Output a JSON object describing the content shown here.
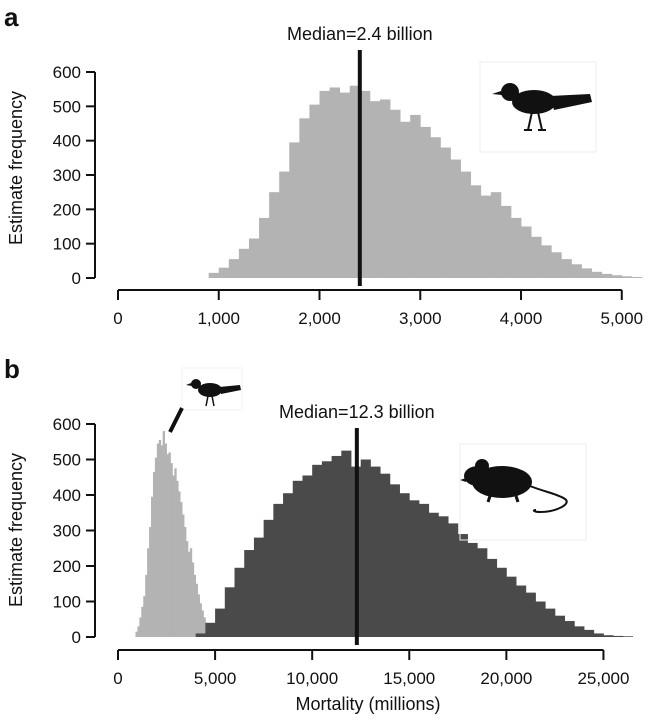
{
  "colors": {
    "bird_bars": "#b3b3b3",
    "mammal_bars": "#4a4a4a",
    "median_line": "#111111",
    "axis": "#111111"
  },
  "chart_data": [
    {
      "panel_label": "a",
      "type": "bar",
      "ylabel": "Estimate frequency",
      "xlabel": "",
      "xlim": [
        0,
        5300
      ],
      "ylim": [
        0,
        600
      ],
      "xticks": [
        0,
        1000,
        2000,
        3000,
        4000,
        5000
      ],
      "xtick_labels": [
        "0",
        "1,000",
        "2,000",
        "3,000",
        "4,000",
        "5,000"
      ],
      "yticks": [
        0,
        100,
        200,
        300,
        400,
        500,
        600
      ],
      "ytick_labels": [
        "0",
        "100",
        "200",
        "300",
        "400",
        "500",
        "600"
      ],
      "median": {
        "value": 2400,
        "label": "Median=2.4 billion"
      },
      "icon": "bird-icon",
      "series": [
        {
          "bin_start": 900,
          "bin_width": 100,
          "values": [
            15,
            30,
            55,
            85,
            115,
            175,
            250,
            310,
            395,
            465,
            505,
            545,
            555,
            540,
            560,
            545,
            515,
            520,
            490,
            455,
            475,
            440,
            410,
            380,
            345,
            310,
            270,
            240,
            250,
            210,
            175,
            150,
            120,
            95,
            75,
            55,
            40,
            28,
            18,
            12,
            8,
            5,
            3
          ]
        }
      ]
    },
    {
      "panel_label": "b",
      "type": "bar",
      "ylabel": "Estimate frequency",
      "xlabel": "Mortality (millions)",
      "xlim": [
        0,
        27500
      ],
      "ylim": [
        0,
        600
      ],
      "xticks": [
        0,
        5000,
        10000,
        15000,
        20000,
        25000
      ],
      "xtick_labels": [
        "0",
        "5,000",
        "10,000",
        "15,000",
        "20,000",
        "25,000"
      ],
      "yticks": [
        0,
        100,
        200,
        300,
        400,
        500,
        600
      ],
      "ytick_labels": [
        "0",
        "100",
        "200",
        "300",
        "400",
        "500",
        "600"
      ],
      "median": {
        "value": 12300,
        "label": "Median=12.3 billion"
      },
      "icons": [
        "bird-icon",
        "mouse-icon"
      ],
      "series": [
        {
          "bin_start": 900,
          "bin_width": 100,
          "values": [
            15,
            30,
            55,
            85,
            115,
            175,
            250,
            310,
            395,
            465,
            505,
            545,
            555,
            540,
            580,
            545,
            515,
            520,
            490,
            455,
            475,
            440,
            410,
            380,
            345,
            310,
            270,
            240,
            250,
            210,
            175,
            150,
            120,
            95,
            75,
            55,
            40,
            28,
            18,
            12,
            8,
            5,
            3
          ]
        },
        {
          "bin_start": 4000,
          "bin_width": 500,
          "values": [
            10,
            40,
            80,
            140,
            195,
            245,
            280,
            330,
            375,
            405,
            440,
            455,
            485,
            495,
            510,
            525,
            480,
            500,
            480,
            460,
            430,
            405,
            385,
            375,
            350,
            340,
            320,
            290,
            265,
            250,
            220,
            195,
            170,
            145,
            125,
            100,
            80,
            60,
            45,
            30,
            20,
            10,
            5,
            3,
            2
          ]
        }
      ]
    }
  ]
}
